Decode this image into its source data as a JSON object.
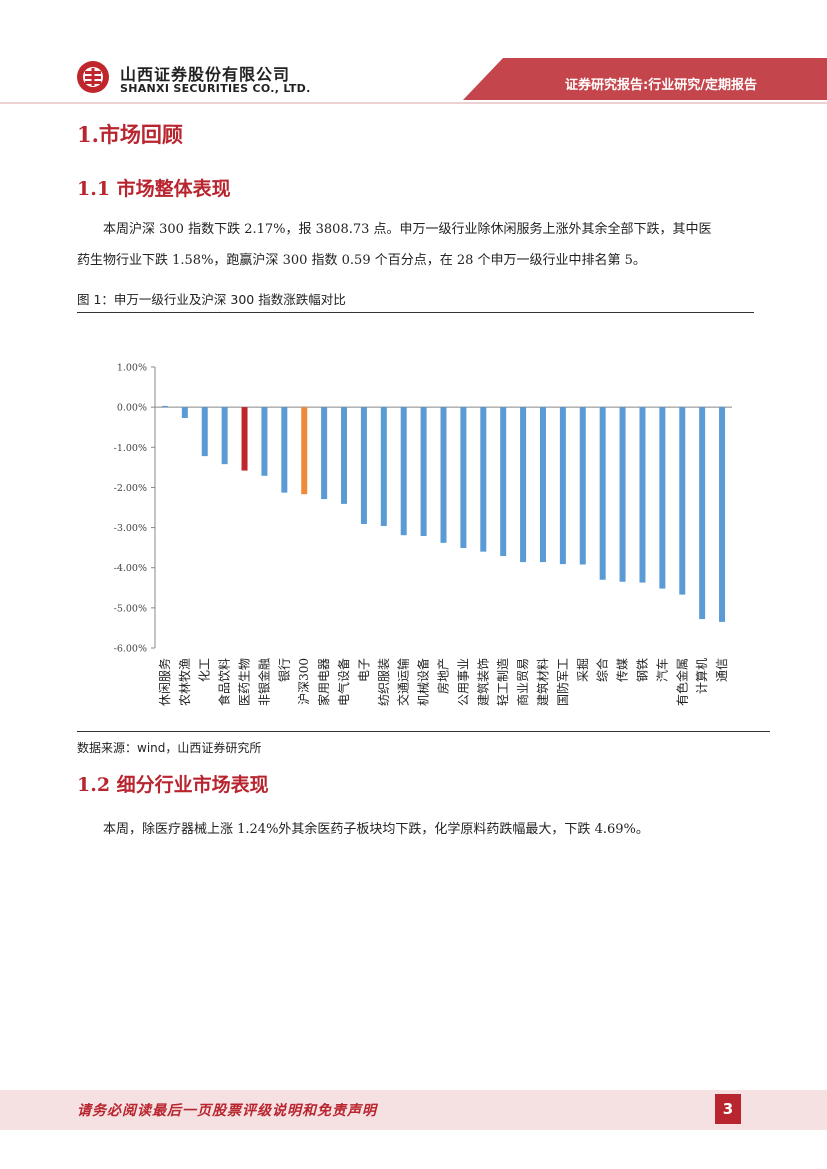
{
  "header": {
    "company_cn": "山西证券股份有限公司",
    "company_en": "SHANXI SECURITIES CO., LTD.",
    "report_type": "证券研究报告:行业研究/定期报告",
    "brand_color": "#b8252f"
  },
  "section1": {
    "title": "1.市场回顾"
  },
  "section1_1": {
    "title": "1.1 市场整体表现",
    "paragraph_line1": "本周沪深 300 指数下跌 2.17%，报 3808.73 点。申万一级行业除休闲服务上涨外其余全部下跌，其中医",
    "paragraph_line2": "药生物行业下跌 1.58%，跑赢沪深 300 指数 0.59 个百分点，在 28 个申万一级行业中排名第 5。"
  },
  "figure1": {
    "title": "图 1：申万一级行业及沪深 300 指数涨跌幅对比",
    "source": "数据来源：wind，山西证券研究所"
  },
  "chart_data": {
    "type": "bar",
    "categories": [
      "休闲服务",
      "农林牧渔",
      "化工",
      "食品饮料",
      "医药生物",
      "非银金融",
      "银行",
      "沪深300",
      "家用电器",
      "电气设备",
      "电子",
      "纺织服装",
      "交通运输",
      "机械设备",
      "房地产",
      "公用事业",
      "建筑装饰",
      "轻工制造",
      "商业贸易",
      "建筑材料",
      "国防军工",
      "采掘",
      "综合",
      "传媒",
      "钢铁",
      "汽车",
      "有色金属",
      "计算机",
      "通信"
    ],
    "values": [
      0.03,
      -0.27,
      -1.22,
      -1.42,
      -1.58,
      -1.71,
      -2.13,
      -2.17,
      -2.29,
      -2.41,
      -2.91,
      -2.96,
      -3.19,
      -3.21,
      -3.38,
      -3.51,
      -3.6,
      -3.71,
      -3.86,
      -3.86,
      -3.91,
      -3.92,
      -4.3,
      -4.35,
      -4.37,
      -4.52,
      -4.67,
      -5.28,
      -5.35
    ],
    "highlight": {
      "医药生物": "#c0272d",
      "沪深300": "#ef8a3a"
    },
    "bar_color": "#5b9bd5",
    "yticks": [
      "1.00%",
      "0.00%",
      "-1.00%",
      "-2.00%",
      "-3.00%",
      "-4.00%",
      "-5.00%",
      "-6.00%"
    ],
    "ylim": [
      -6,
      1
    ],
    "grid": false,
    "xlabel": "",
    "ylabel": ""
  },
  "section1_2": {
    "title": "1.2 细分行业市场表现",
    "paragraph": "本周，除医疗器械上涨 1.24%外其余医药子板块均下跌，化学原料药跌幅最大，下跌 4.69%。"
  },
  "footer": {
    "disclaimer": "请务必阅读最后一页股票评级说明和免责声明",
    "page_number": "3"
  }
}
